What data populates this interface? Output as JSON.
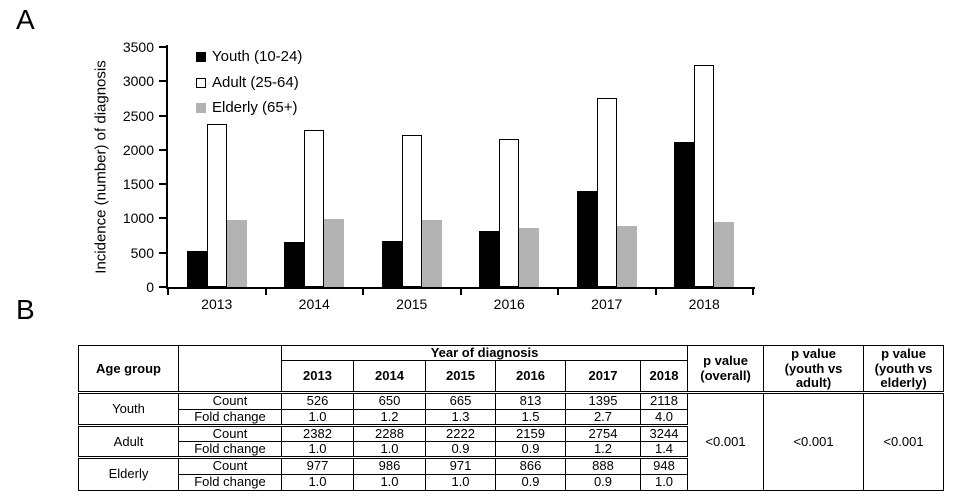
{
  "panels": {
    "a_label": "A",
    "b_label": "B"
  },
  "chart_data": {
    "type": "bar",
    "title": "",
    "xlabel": "",
    "ylabel": "Incidence (number) of diagnosis",
    "ylim": [
      0,
      3500
    ],
    "ytick_step": 500,
    "ytick_labels": [
      "0",
      "500",
      "1000",
      "1500",
      "2000",
      "2500",
      "3000",
      "3500"
    ],
    "categories": [
      "2013",
      "2014",
      "2015",
      "2016",
      "2017",
      "2018"
    ],
    "series": [
      {
        "key": "youth",
        "name": "Youth (10-24)",
        "values": [
          526,
          650,
          665,
          813,
          1395,
          2118
        ],
        "fill": "#000000",
        "border": "#000000"
      },
      {
        "key": "adult",
        "name": "Adult (25-64)",
        "values": [
          2382,
          2288,
          2222,
          2159,
          2754,
          3244
        ],
        "fill": "#ffffff",
        "border": "#000000"
      },
      {
        "key": "elderly",
        "name": "Elderly (65+)",
        "values": [
          977,
          986,
          971,
          866,
          888,
          948
        ],
        "fill": "#b3b3b3",
        "border": "#b3b3b3"
      }
    ],
    "legend_position": "top-left-inside",
    "grid": false
  },
  "table": {
    "header": {
      "age_group": "Age group",
      "blank": "",
      "year_of_diagnosis": "Year of diagnosis",
      "years": [
        "2013",
        "2014",
        "2015",
        "2016",
        "2017",
        "2018"
      ],
      "p_overall": "p value\n(overall)",
      "p_youth_adult": "p value\n(youth vs\nadult)",
      "p_youth_elderly": "p value\n(youth vs\nelderly)"
    },
    "row_labels": {
      "count": "Count",
      "fold_change": "Fold change"
    },
    "groups": [
      {
        "name": "Youth",
        "count": [
          "526",
          "650",
          "665",
          "813",
          "1395",
          "2118"
        ],
        "fold_change": [
          "1.0",
          "1.2",
          "1.3",
          "1.5",
          "2.7",
          "4.0"
        ]
      },
      {
        "name": "Adult",
        "count": [
          "2382",
          "2288",
          "2222",
          "2159",
          "2754",
          "3244"
        ],
        "fold_change": [
          "1.0",
          "1.0",
          "0.9",
          "0.9",
          "1.2",
          "1.4"
        ]
      },
      {
        "name": "Elderly",
        "count": [
          "977",
          "986",
          "971",
          "866",
          "888",
          "948"
        ],
        "fold_change": [
          "1.0",
          "1.0",
          "1.0",
          "0.9",
          "0.9",
          "1.0"
        ]
      }
    ],
    "p_values": {
      "overall": "<0.001",
      "youth_vs_adult": "<0.001",
      "youth_vs_elderly": "<0.001"
    }
  },
  "colors": {
    "youth_fill": "#000000",
    "adult_fill": "#ffffff",
    "adult_border": "#000000",
    "elderly_fill": "#b3b3b3",
    "axis": "#000000",
    "text": "#000000"
  }
}
